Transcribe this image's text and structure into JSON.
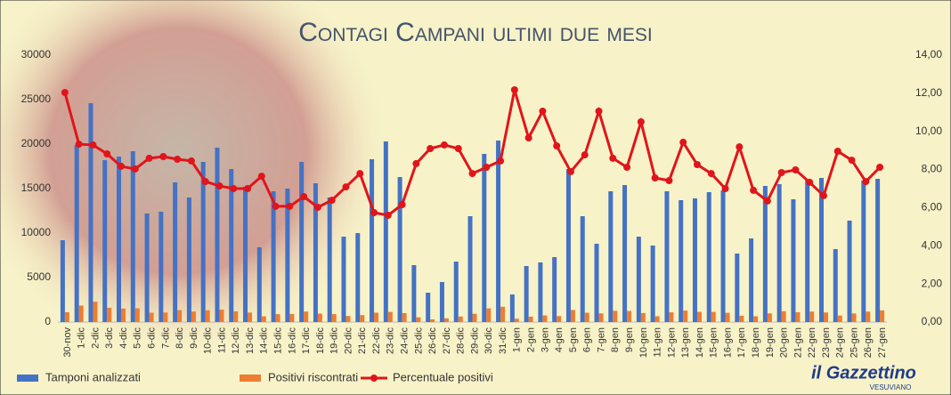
{
  "chart_data": {
    "type": "bar-line",
    "title": "Contagi Campani ultimi due mesi",
    "categories": [
      "30-nov",
      "1-dic",
      "2-dic",
      "3-dic",
      "4-dic",
      "5-dic",
      "6-dic",
      "7-dic",
      "8-dic",
      "9-dic",
      "10-dic",
      "11-dic",
      "12-dic",
      "13-dic",
      "14-dic",
      "15-dic",
      "16-dic",
      "17-dic",
      "18-dic",
      "19-dic",
      "20-dic",
      "21-dic",
      "22-dic",
      "23-dic",
      "24-dic",
      "25-dic",
      "26-dic",
      "27-dic",
      "28-dic",
      "29-dic",
      "30-dic",
      "31-dic",
      "1-gen",
      "2-gen",
      "3-gen",
      "4-gen",
      "5-gen",
      "6-gen",
      "7-gen",
      "8-gen",
      "9-gen",
      "10-gen",
      "11-gen",
      "12-gen",
      "13-gen",
      "14-gen",
      "15-gen",
      "16-gen",
      "17-gen",
      "18-gen",
      "19-gen",
      "20-gen",
      "21-gen",
      "22-gen",
      "23-gen",
      "24-gen",
      "25-gen",
      "26-gen",
      "27-gen"
    ],
    "series": [
      {
        "name": "Tamponi analizzati",
        "color": "#4472c4",
        "type": "bar",
        "values": [
          9200,
          19900,
          24600,
          18200,
          18600,
          19200,
          12200,
          12400,
          15700,
          14000,
          18000,
          19600,
          17200,
          15200,
          8400,
          14700,
          15000,
          18000,
          15600,
          14000,
          9600,
          10000,
          18300,
          20300,
          16300,
          6400,
          3300,
          4500,
          6800,
          11900,
          18900,
          20400,
          3100,
          6300,
          6700,
          7300,
          17200,
          11900,
          8800,
          14700,
          15400,
          9600,
          8600,
          14700,
          13700,
          13900,
          14600,
          14800,
          7700,
          9400,
          15300,
          15500,
          13800,
          16000,
          16200,
          8200,
          11400,
          15900,
          16100
        ]
      },
      {
        "name": "Positivi riscontrati",
        "color": "#ed7d31",
        "type": "bar",
        "values": [
          1108,
          1857,
          2285,
          1605,
          1520,
          1542,
          1048,
          1076,
          1341,
          1183,
          1327,
          1399,
          1204,
          1064,
          643,
          892,
          911,
          1184,
          939,
          895,
          681,
          779,
          1050,
          1137,
          1004,
          532,
          300,
          418,
          619,
          927,
          1535,
          1724,
          378,
          609,
          741,
          675,
          1357,
          1044,
          973,
          1263,
          1250,
          1008,
          650,
          1091,
          1292,
          1148,
          1137,
          1036,
          708,
          650,
          972,
          1215,
          1101,
          1173,
          1074,
          735,
          968,
          1172,
          1307
        ]
      },
      {
        "name": "Percentuale positivi",
        "color": "#e0151b",
        "type": "line",
        "axis": "y2",
        "values": [
          12.04,
          9.33,
          9.29,
          8.82,
          8.17,
          8.03,
          8.59,
          8.68,
          8.54,
          8.45,
          7.37,
          7.14,
          7.0,
          7.0,
          7.65,
          6.07,
          6.07,
          6.58,
          6.02,
          6.39,
          7.09,
          7.79,
          5.74,
          5.6,
          6.16,
          8.31,
          9.1,
          9.29,
          9.1,
          7.79,
          8.12,
          8.45,
          12.18,
          9.66,
          11.06,
          9.24,
          7.89,
          8.77,
          11.06,
          8.59,
          8.12,
          10.5,
          7.56,
          7.42,
          9.43,
          8.26,
          7.79,
          7.0,
          9.19,
          6.91,
          6.35,
          7.84,
          7.98,
          7.33,
          6.63,
          8.96,
          8.49,
          7.37,
          8.12
        ]
      }
    ],
    "ylim": [
      0,
      30000
    ],
    "yticks": [
      0,
      5000,
      10000,
      15000,
      20000,
      25000,
      30000
    ],
    "y2lim": [
      0,
      14
    ],
    "y2ticks": [
      {
        "value": 0,
        "label": "0,00"
      },
      {
        "value": 2,
        "label": "2,00"
      },
      {
        "value": 4,
        "label": "4,00"
      },
      {
        "value": 6,
        "label": "6,00"
      },
      {
        "value": 8,
        "label": "8,00"
      },
      {
        "value": 10,
        "label": "10,00"
      },
      {
        "value": 12,
        "label": "12,00"
      },
      {
        "value": 14,
        "label": "14,00"
      }
    ],
    "grid": false,
    "legend": "bottom"
  },
  "logo": {
    "name": "il Gazzettino",
    "subtitle": "VESUVIANO"
  }
}
